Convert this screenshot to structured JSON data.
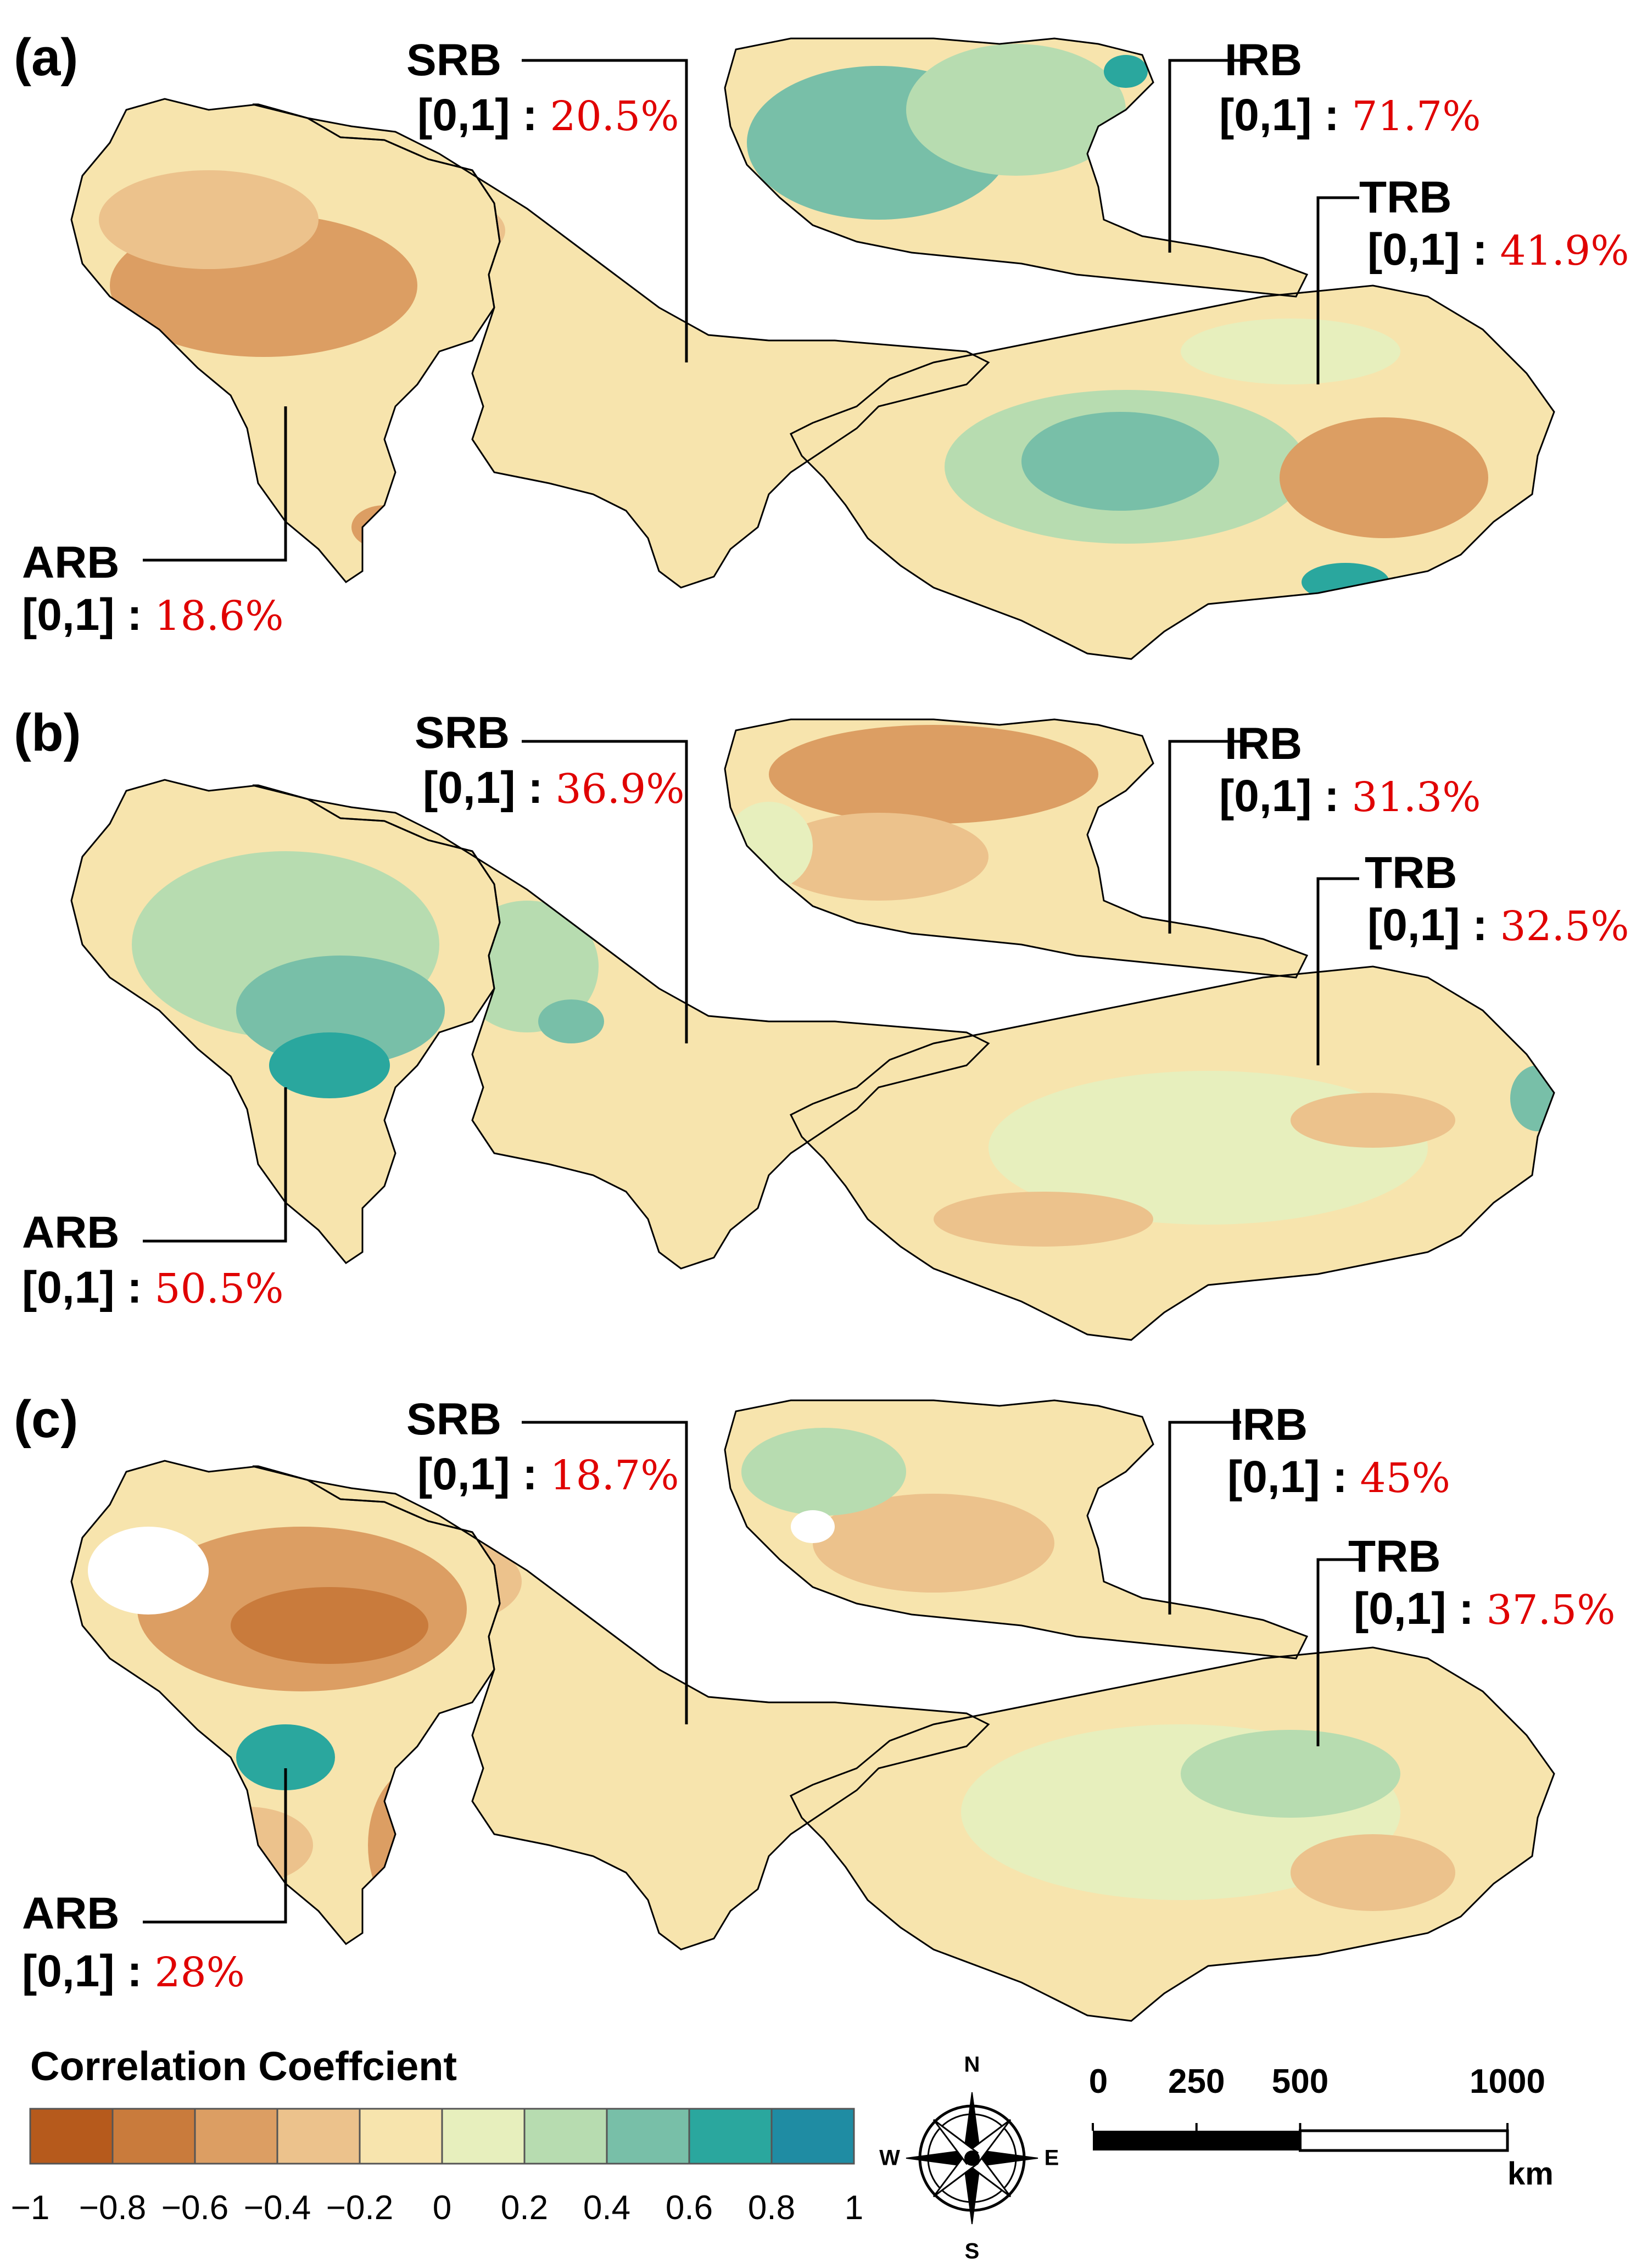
{
  "panels": [
    {
      "label": "(a)",
      "basins": [
        {
          "code": "SRB",
          "range": "[0,1]",
          "sep": " : ",
          "pct": "20.5%"
        },
        {
          "code": "IRB",
          "range": "[0,1]",
          "sep": " : ",
          "pct": "71.7%"
        },
        {
          "code": "TRB",
          "range": "[0,1]",
          "sep": " : ",
          "pct": "41.9%"
        },
        {
          "code": "ARB",
          "range": "[0,1]",
          "sep": " : ",
          "pct": "18.6%"
        }
      ]
    },
    {
      "label": "(b)",
      "basins": [
        {
          "code": "SRB",
          "range": "[0,1]",
          "sep": " : ",
          "pct": "36.9%"
        },
        {
          "code": "IRB",
          "range": "[0,1]",
          "sep": " : ",
          "pct": "31.3%"
        },
        {
          "code": "TRB",
          "range": "[0,1]",
          "sep": " : ",
          "pct": "32.5%"
        },
        {
          "code": "ARB",
          "range": "[0,1]",
          "sep": " : ",
          "pct": "50.5%"
        }
      ]
    },
    {
      "label": "(c)",
      "basins": [
        {
          "code": "SRB",
          "range": "[0,1]",
          "sep": " : ",
          "pct": "18.7%"
        },
        {
          "code": "IRB",
          "range": "[0,1]",
          "sep": " :   ",
          "pct": "45%"
        },
        {
          "code": "TRB",
          "range": "[0,1]",
          "sep": " : ",
          "pct": "37.5%"
        },
        {
          "code": "ARB",
          "range": "[0,1]",
          "sep": " :   ",
          "pct": "28%"
        }
      ]
    }
  ],
  "legend": {
    "title": "Correlation Coeffcient",
    "ticks": [
      "−1",
      "−0.8",
      "−0.6",
      "−0.4",
      "−0.2",
      "0",
      "0.2",
      "0.4",
      "0.6",
      "0.8",
      "1"
    ],
    "colors": [
      "#b65a1c",
      "#c97b3c",
      "#dc9e63",
      "#ecc28c",
      "#f7e4ad",
      "#e7efbd",
      "#b7dcb0",
      "#78bfa8",
      "#2aa79e",
      "#1f8ca3"
    ]
  },
  "compass": {
    "n": "N",
    "s": "S",
    "e": "E",
    "w": "W"
  },
  "scalebar": {
    "ticks": [
      "0",
      "250",
      "500",
      "1000"
    ],
    "unit": "km"
  },
  "map_colors": {
    "neutral": "#f7e4ad",
    "light_brown": "#ecc28c",
    "brown": "#dc9e63",
    "dark_brown": "#c97b3c",
    "light_green": "#e7efbd",
    "green": "#b7dcb0",
    "teal": "#78bfa8",
    "dark_teal": "#2aa79e",
    "border": "#000000"
  }
}
